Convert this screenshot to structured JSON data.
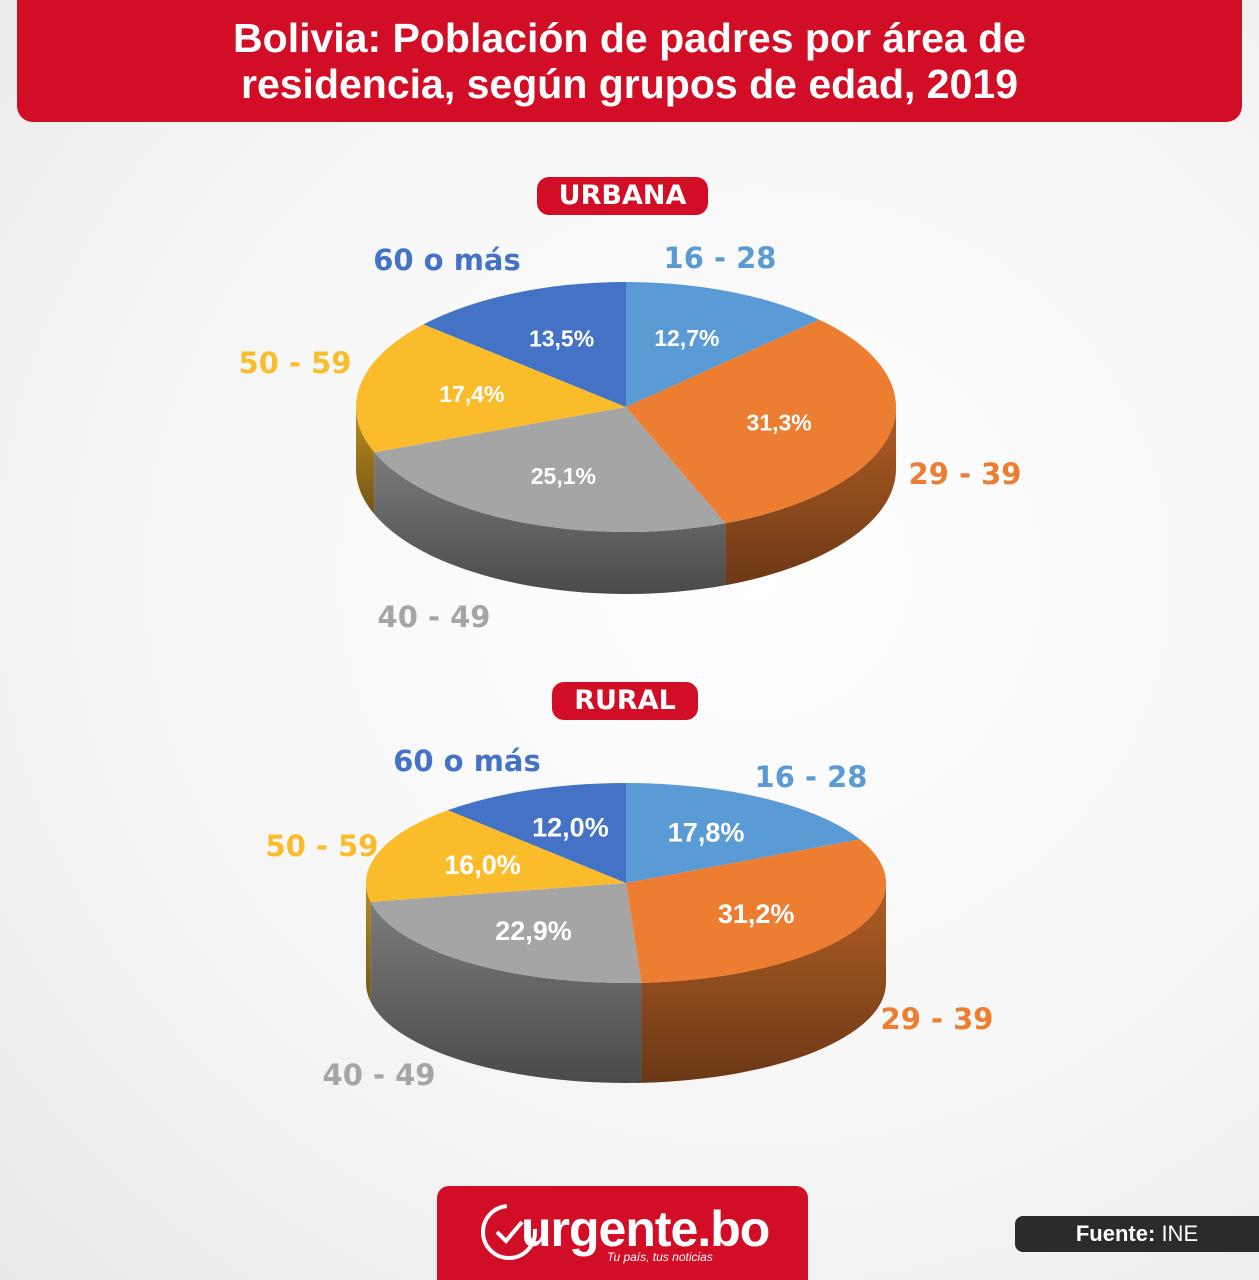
{
  "title": "Bolivia: Población de padres por área de\nresidencia, según grupos de edad, 2019",
  "colors": {
    "banner": "#d20d26",
    "16 - 28": "#5b9bd5",
    "29 - 39": "#ed7d31",
    "40 - 49": "#a5a5a5",
    "50 - 59": "#fbbc2c",
    "60 o más": "#4472c4"
  },
  "chart_data": [
    {
      "type": "pie",
      "title": "URBANA",
      "categories": [
        "16 - 28",
        "29 - 39",
        "40 - 49",
        "50 - 59",
        "60 o más"
      ],
      "values": [
        12.7,
        31.3,
        25.1,
        17.4,
        13.5
      ],
      "data_labels": [
        "12,7%",
        "31,3%",
        "25,1%",
        "17,4%",
        "13,5%"
      ]
    },
    {
      "type": "pie",
      "title": "RURAL",
      "categories": [
        "16 - 28",
        "29 - 39",
        "40 - 49",
        "50 - 59",
        "60 o más"
      ],
      "values": [
        17.8,
        31.2,
        22.9,
        16.0,
        12.0
      ],
      "data_labels": [
        "17,8%",
        "31,2%",
        "22,9%",
        "16,0%",
        "12,0%"
      ]
    }
  ],
  "brand": {
    "name": "urgente.bo",
    "tagline": "Tu país, tus noticias",
    "icon": "clock-check-icon"
  },
  "source": {
    "label": "Fuente:",
    "value": "INE"
  }
}
